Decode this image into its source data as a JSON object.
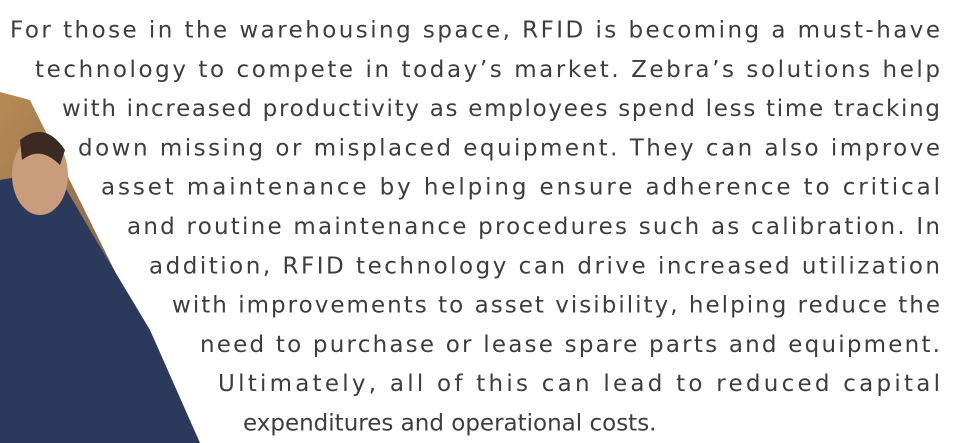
{
  "paragraph": {
    "lines": [
      "For those in the warehousing space, RFID is becoming a must-have",
      "technology to compete in today’s market. Zebra’s solutions help",
      "with increased productivity as employees spend less time tracking",
      "down missing or misplaced equipment. They can also improve",
      "asset maintenance by helping ensure adherence to critical",
      "and routine maintenance procedures such as calibration. In",
      "addition, RFID technology can drive increased utilization",
      "with improvements to asset visibility, helping reduce the",
      "need to purchase or lease spare parts and equipment.",
      "Ultimately, all of this can lead to reduced capital",
      "expenditures and operational costs."
    ]
  }
}
